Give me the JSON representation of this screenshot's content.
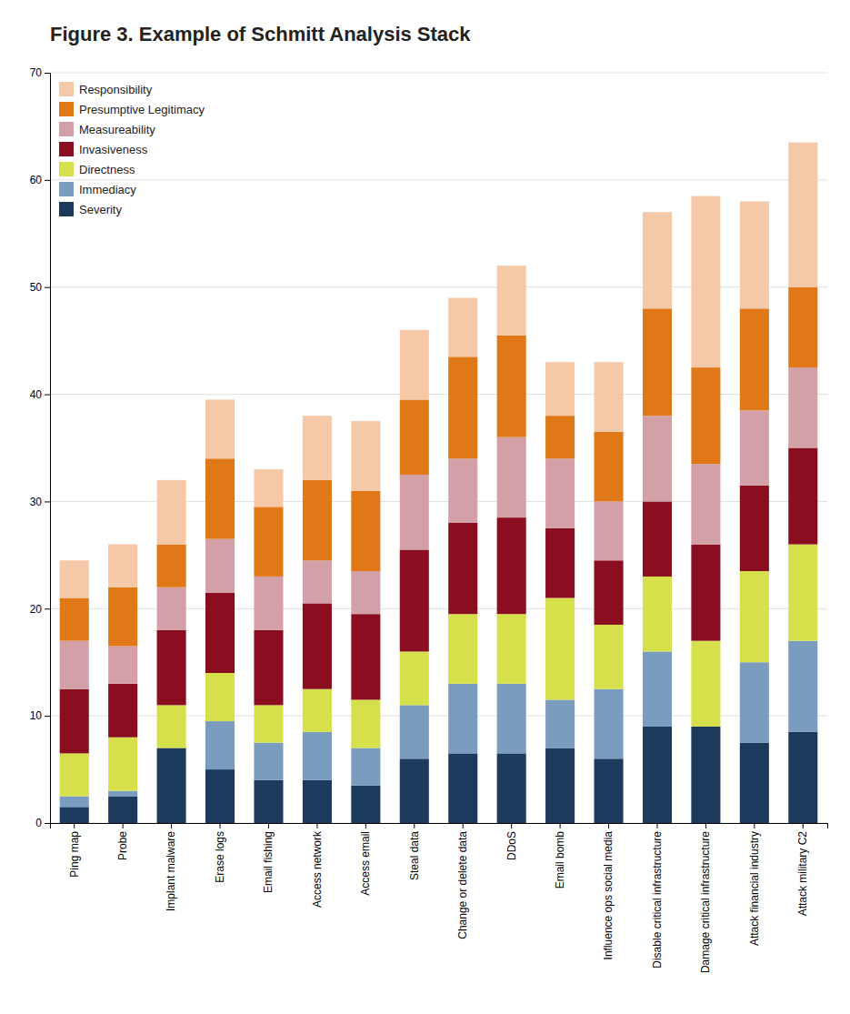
{
  "chart_data": {
    "type": "bar",
    "stacked": true,
    "title": "Figure 3. Example of Schmitt Analysis Stack",
    "categories": [
      "Ping map",
      "Probe",
      "Implant malware",
      "Erase logs",
      "Email fishing",
      "Access network",
      "Access email",
      "Steal data",
      "Change or delete data",
      "DDoS",
      "Email bomb",
      "Influence ops social media",
      "Disable critical infrastructure",
      "Damage critical infrastructure",
      "Attack financial industry",
      "Attack military C2"
    ],
    "series": [
      {
        "name": "Severity",
        "color": "#1b3a5c",
        "values": [
          1.5,
          2.5,
          7.0,
          5.0,
          4.0,
          4.0,
          3.5,
          6.0,
          6.5,
          6.5,
          7.0,
          6.0,
          9.0,
          9.0,
          7.5,
          8.5
        ]
      },
      {
        "name": "Immediacy",
        "color": "#7a9dbf",
        "values": [
          1.0,
          0.5,
          0.0,
          4.5,
          3.5,
          4.5,
          3.5,
          5.0,
          6.5,
          6.5,
          4.5,
          6.5,
          7.0,
          0.0,
          7.5,
          8.5
        ]
      },
      {
        "name": "Directness",
        "color": "#d5e04a",
        "values": [
          4.0,
          5.0,
          4.0,
          4.5,
          3.5,
          4.0,
          4.5,
          5.0,
          6.5,
          6.5,
          9.5,
          6.0,
          7.0,
          8.0,
          8.5,
          9.0
        ]
      },
      {
        "name": "Invasiveness",
        "color": "#8b0d20",
        "values": [
          6.0,
          5.0,
          7.0,
          7.5,
          7.0,
          8.0,
          8.0,
          9.5,
          8.5,
          9.0,
          6.5,
          6.0,
          7.0,
          9.0,
          8.0,
          9.0
        ]
      },
      {
        "name": "Measureability",
        "color": "#d4a0a8",
        "values": [
          4.5,
          3.5,
          4.0,
          5.0,
          5.0,
          4.0,
          4.0,
          7.0,
          6.0,
          7.5,
          6.5,
          5.5,
          8.0,
          7.5,
          7.0,
          7.5
        ]
      },
      {
        "name": "Presumptive Legitimacy",
        "color": "#e07818",
        "values": [
          4.0,
          5.5,
          4.0,
          7.5,
          6.5,
          7.5,
          7.5,
          7.0,
          9.5,
          9.5,
          4.0,
          6.5,
          10.0,
          9.0,
          9.5,
          7.5
        ]
      },
      {
        "name": "Responsibility",
        "color": "#f5c8a8",
        "values": [
          3.5,
          4.0,
          6.0,
          5.5,
          3.5,
          6.0,
          6.5,
          6.5,
          5.5,
          6.5,
          5.0,
          6.5,
          9.0,
          16.0,
          10.0,
          13.5
        ]
      }
    ],
    "ylim": [
      0,
      70
    ],
    "yticks": [
      0,
      10,
      20,
      30,
      40,
      50,
      60,
      70
    ],
    "grid": true,
    "legend": "upper left"
  }
}
